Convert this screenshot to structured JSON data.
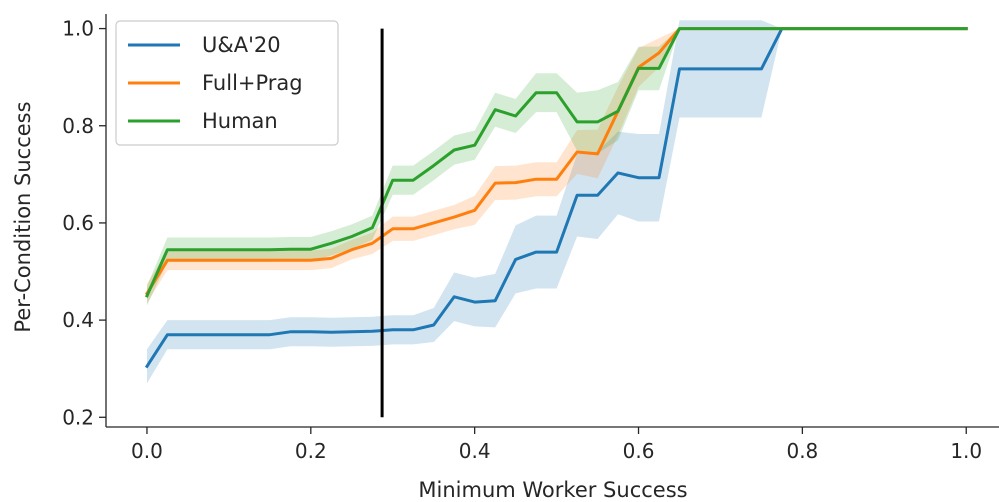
{
  "chart_data": {
    "type": "line",
    "xlabel": "Minimum Worker Success",
    "ylabel": "Per-Condition Success",
    "xlim": [
      -0.05,
      1.04
    ],
    "ylim": [
      0.18,
      1.03
    ],
    "xticks": [
      0.0,
      0.2,
      0.4,
      0.6,
      0.8,
      1.0
    ],
    "xtick_labels": [
      "0.0",
      "0.2",
      "0.4",
      "0.6",
      "0.8",
      "1.0"
    ],
    "yticks": [
      0.2,
      0.4,
      0.6,
      0.8,
      1.0
    ],
    "ytick_labels": [
      "0.2",
      "0.4",
      "0.6",
      "0.8",
      "1.0"
    ],
    "grid": false,
    "legend_position": "top-left",
    "reference_line": {
      "x": 0.287,
      "y_range": [
        0.2,
        1.0
      ],
      "color": "#000000"
    },
    "series": [
      {
        "name": "U&A'20",
        "color": "#1f77b4",
        "points": [
          [
            0.0,
            0.305
          ],
          [
            0.025,
            0.37
          ],
          [
            0.05,
            0.37
          ],
          [
            0.075,
            0.37
          ],
          [
            0.1,
            0.37
          ],
          [
            0.125,
            0.37
          ],
          [
            0.15,
            0.37
          ],
          [
            0.175,
            0.376
          ],
          [
            0.2,
            0.376
          ],
          [
            0.225,
            0.375
          ],
          [
            0.25,
            0.376
          ],
          [
            0.275,
            0.377
          ],
          [
            0.3,
            0.38
          ],
          [
            0.325,
            0.38
          ],
          [
            0.35,
            0.39
          ],
          [
            0.375,
            0.448
          ],
          [
            0.4,
            0.437
          ],
          [
            0.425,
            0.44
          ],
          [
            0.45,
            0.525
          ],
          [
            0.475,
            0.54
          ],
          [
            0.5,
            0.54
          ],
          [
            0.525,
            0.657
          ],
          [
            0.55,
            0.657
          ],
          [
            0.575,
            0.703
          ],
          [
            0.6,
            0.693
          ],
          [
            0.625,
            0.693
          ],
          [
            0.65,
            0.917
          ],
          [
            0.675,
            0.917
          ],
          [
            0.7,
            0.917
          ],
          [
            0.725,
            0.917
          ],
          [
            0.75,
            0.917
          ],
          [
            0.775,
            1.0
          ],
          [
            0.8,
            1.0
          ],
          [
            1.0,
            1.0
          ]
        ],
        "band": [
          0.035,
          0.03,
          0.03,
          0.03,
          0.03,
          0.03,
          0.03,
          0.03,
          0.03,
          0.03,
          0.03,
          0.03,
          0.03,
          0.03,
          0.035,
          0.05,
          0.05,
          0.055,
          0.07,
          0.075,
          0.075,
          0.085,
          0.09,
          0.085,
          0.09,
          0.09,
          0.1,
          0.1,
          0.1,
          0.1,
          0.1,
          0.0,
          0.0,
          0.0
        ]
      },
      {
        "name": "Full+Prag",
        "color": "#ff7f0e",
        "points": [
          [
            0.0,
            0.455
          ],
          [
            0.025,
            0.523
          ],
          [
            0.05,
            0.523
          ],
          [
            0.075,
            0.523
          ],
          [
            0.1,
            0.523
          ],
          [
            0.125,
            0.523
          ],
          [
            0.15,
            0.523
          ],
          [
            0.175,
            0.523
          ],
          [
            0.2,
            0.523
          ],
          [
            0.225,
            0.527
          ],
          [
            0.25,
            0.545
          ],
          [
            0.275,
            0.558
          ],
          [
            0.3,
            0.588
          ],
          [
            0.325,
            0.588
          ],
          [
            0.35,
            0.6
          ],
          [
            0.375,
            0.612
          ],
          [
            0.4,
            0.626
          ],
          [
            0.425,
            0.682
          ],
          [
            0.45,
            0.683
          ],
          [
            0.475,
            0.69
          ],
          [
            0.5,
            0.69
          ],
          [
            0.525,
            0.746
          ],
          [
            0.55,
            0.742
          ],
          [
            0.575,
            0.83
          ],
          [
            0.6,
            0.92
          ],
          [
            0.625,
            0.95
          ],
          [
            0.65,
            1.0
          ],
          [
            0.675,
            1.0
          ],
          [
            1.0,
            1.0
          ]
        ],
        "band": [
          0.02,
          0.02,
          0.02,
          0.02,
          0.02,
          0.02,
          0.02,
          0.02,
          0.02,
          0.02,
          0.02,
          0.022,
          0.025,
          0.025,
          0.025,
          0.025,
          0.03,
          0.035,
          0.035,
          0.035,
          0.035,
          0.045,
          0.05,
          0.05,
          0.04,
          0.03,
          0.0,
          0.0,
          0.0
        ]
      },
      {
        "name": "Human",
        "color": "#2ca02c",
        "points": [
          [
            0.0,
            0.45
          ],
          [
            0.025,
            0.545
          ],
          [
            0.05,
            0.545
          ],
          [
            0.075,
            0.545
          ],
          [
            0.1,
            0.545
          ],
          [
            0.125,
            0.545
          ],
          [
            0.15,
            0.545
          ],
          [
            0.175,
            0.546
          ],
          [
            0.2,
            0.546
          ],
          [
            0.225,
            0.558
          ],
          [
            0.25,
            0.572
          ],
          [
            0.275,
            0.59
          ],
          [
            0.3,
            0.688
          ],
          [
            0.325,
            0.688
          ],
          [
            0.35,
            0.718
          ],
          [
            0.375,
            0.75
          ],
          [
            0.4,
            0.76
          ],
          [
            0.425,
            0.833
          ],
          [
            0.45,
            0.82
          ],
          [
            0.475,
            0.868
          ],
          [
            0.5,
            0.868
          ],
          [
            0.525,
            0.808
          ],
          [
            0.55,
            0.808
          ],
          [
            0.575,
            0.83
          ],
          [
            0.6,
            0.918
          ],
          [
            0.625,
            0.918
          ],
          [
            0.65,
            1.0
          ],
          [
            0.675,
            1.0
          ],
          [
            1.0,
            1.0
          ]
        ],
        "band": [
          0.02,
          0.025,
          0.025,
          0.025,
          0.025,
          0.025,
          0.025,
          0.025,
          0.025,
          0.025,
          0.025,
          0.025,
          0.03,
          0.03,
          0.03,
          0.03,
          0.03,
          0.035,
          0.035,
          0.04,
          0.04,
          0.06,
          0.065,
          0.06,
          0.045,
          0.045,
          0.0,
          0.0,
          0.0
        ]
      }
    ]
  }
}
